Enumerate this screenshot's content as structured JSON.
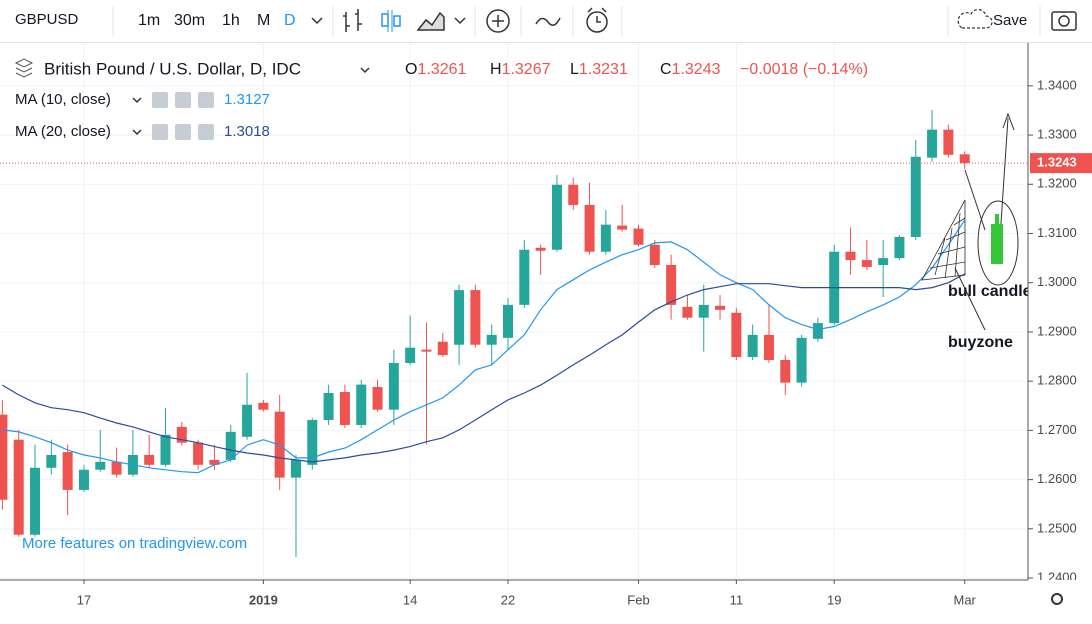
{
  "toolbar": {
    "symbol": "GBPUSD",
    "intervals": [
      "1m",
      "30m",
      "1h",
      "M",
      "D"
    ],
    "save": "Save"
  },
  "chart_data": {
    "type": "candlestick",
    "title": "British Pound / U.S. Dollar, D, IDC",
    "ohlc_labels": [
      "O",
      "H",
      "L",
      "C"
    ],
    "change_text": "−0.0018 (−0.14%)",
    "watermark": "More features on tradingview.com",
    "up_color": "#26a69a",
    "down_color": "#ef5350",
    "categories": [
      null,
      null,
      null,
      null,
      null,
      "17",
      null,
      null,
      null,
      null,
      null,
      null,
      null,
      null,
      null,
      null,
      "2019",
      null,
      null,
      null,
      null,
      null,
      null,
      null,
      null,
      "14",
      null,
      null,
      null,
      null,
      null,
      "22",
      null,
      null,
      null,
      null,
      null,
      null,
      null,
      "Feb",
      null,
      null,
      null,
      null,
      null,
      "11",
      null,
      null,
      null,
      null,
      null,
      "19",
      null,
      null,
      null,
      null,
      null,
      null,
      null,
      "Mar"
    ],
    "open": [
      1.2732,
      1.2681,
      1.2488,
      1.2624,
      1.2656,
      1.2579,
      1.262,
      1.2636,
      1.261,
      1.265,
      1.263,
      1.2707,
      1.2675,
      1.264,
      1.264,
      1.2687,
      1.2756,
      1.2738,
      1.2604,
      1.263,
      1.2721,
      1.2778,
      1.2711,
      1.2788,
      1.2742,
      1.2837,
      1.2864,
      1.288,
      1.2874,
      1.2985,
      1.2874,
      1.2888,
      1.2955,
      1.3071,
      1.3067,
      1.3199,
      1.3158,
      1.3063,
      1.3116,
      1.311,
      1.3077,
      1.3036,
      1.2951,
      1.2929,
      1.2953,
      1.2939,
      1.2849,
      1.2894,
      1.2843,
      1.2797,
      1.2886,
      1.2918,
      1.3063,
      1.3046,
      1.3036,
      1.305,
      1.3093,
      1.3254,
      1.3311,
      1.3261
    ],
    "high": [
      1.2762,
      1.2701,
      1.2671,
      1.2681,
      1.2671,
      1.263,
      1.2701,
      1.2665,
      1.2701,
      1.2691,
      1.2746,
      1.2717,
      1.2681,
      1.2671,
      1.2711,
      1.2817,
      1.2762,
      1.2772,
      1.265,
      1.2725,
      1.2793,
      1.2793,
      1.2803,
      1.2803,
      1.2864,
      1.2933,
      1.2919,
      1.2898,
      1.2996,
      1.2996,
      1.2915,
      1.2969,
      1.3087,
      1.3077,
      1.3219,
      1.3213,
      1.3203,
      1.3148,
      1.3158,
      1.3118,
      1.3087,
      1.3057,
      1.2975,
      1.2996,
      1.2975,
      1.2949,
      1.2915,
      1.2955,
      1.2853,
      1.2894,
      1.2929,
      1.3077,
      1.3112,
      1.3087,
      1.3087,
      1.3097,
      1.329,
      1.3351,
      1.3321,
      1.3267
    ],
    "low": [
      1.2539,
      1.2484,
      1.2484,
      1.261,
      1.2528,
      1.2575,
      1.2616,
      1.2604,
      1.2606,
      1.2624,
      1.2626,
      1.2669,
      1.262,
      1.262,
      1.2636,
      1.2681,
      1.2738,
      1.2579,
      1.2443,
      1.262,
      1.2711,
      1.2705,
      1.2705,
      1.2738,
      1.2711,
      1.2833,
      1.2671,
      1.2849,
      1.2833,
      1.2868,
      1.2833,
      1.2864,
      1.2949,
      1.3016,
      1.3063,
      1.3148,
      1.3057,
      1.3057,
      1.3104,
      1.3073,
      1.303,
      1.2925,
      1.2925,
      1.286,
      1.2925,
      1.2843,
      1.2843,
      1.2837,
      1.2772,
      1.2789,
      1.288,
      1.2914,
      1.3016,
      1.3026,
      1.2971,
      1.3046,
      1.3087,
      1.3246,
      1.3254,
      1.3231
    ],
    "close": [
      1.2559,
      1.2488,
      1.2624,
      1.265,
      1.2579,
      1.262,
      1.2636,
      1.261,
      1.265,
      1.263,
      1.2691,
      1.2675,
      1.263,
      1.263,
      1.2697,
      1.2752,
      1.2742,
      1.2604,
      1.264,
      1.2721,
      1.2776,
      1.2711,
      1.2793,
      1.2742,
      1.2837,
      1.2868,
      1.286,
      1.2853,
      1.2985,
      1.2874,
      1.2894,
      1.2955,
      1.3067,
      1.3065,
      1.3199,
      1.3158,
      1.3063,
      1.3118,
      1.3108,
      1.3077,
      1.3036,
      1.2955,
      1.2929,
      1.2955,
      1.2945,
      1.2849,
      1.2894,
      1.2843,
      1.2797,
      1.2888,
      1.2918,
      1.3063,
      1.3046,
      1.3032,
      1.305,
      1.3093,
      1.3256,
      1.3311,
      1.326,
      1.3243
    ],
    "series": [
      {
        "name": "MA (10, close)",
        "color": "#2196f3",
        "values": [
          1.2701,
          1.2697,
          1.2687,
          1.2675,
          1.266,
          1.265,
          1.2644,
          1.2636,
          1.263,
          1.2624,
          1.262,
          1.2616,
          1.2614,
          1.263,
          1.264,
          1.267,
          1.2681,
          1.267,
          1.2644,
          1.2644,
          1.2656,
          1.2664,
          1.2681,
          1.2701,
          1.2721,
          1.2738,
          1.2752,
          1.2766,
          1.2792,
          1.2823,
          1.2833,
          1.2864,
          1.2894,
          1.2945,
          1.2986,
          1.3006,
          1.3026,
          1.3042,
          1.3057,
          1.3067,
          1.3081,
          1.3083,
          1.3067,
          1.3042,
          1.3016,
          1.3,
          1.2986,
          1.2955,
          1.2929,
          1.2915,
          1.2905,
          1.2911,
          1.2925,
          1.2941,
          1.2955,
          1.2971,
          1.2996,
          1.303,
          1.3077,
          1.3127
        ]
      },
      {
        "name": "MA (20, close)",
        "color": "#2b4c9b",
        "values": [
          1.2792,
          1.2772,
          1.2756,
          1.2746,
          1.2742,
          1.2736,
          1.2725,
          1.2715,
          1.2707,
          1.2697,
          1.2687,
          1.2681,
          1.2675,
          1.2667,
          1.266,
          1.2654,
          1.265,
          1.2644,
          1.264,
          1.2636,
          1.264,
          1.2644,
          1.265,
          1.2654,
          1.266,
          1.2667,
          1.2677,
          1.2685,
          1.2701,
          1.2721,
          1.2742,
          1.2762,
          1.2776,
          1.2792,
          1.2812,
          1.2833,
          1.2853,
          1.2874,
          1.2894,
          1.292,
          1.2945,
          1.2961,
          1.2975,
          1.2986,
          1.2992,
          1.2998,
          1.2998,
          1.2998,
          1.2994,
          1.299,
          1.299,
          1.299,
          1.299,
          1.299,
          1.299,
          1.299,
          1.2986,
          1.299,
          1.3,
          1.3018
        ]
      }
    ],
    "ylim": [
      1.2396,
      1.3483
    ],
    "yticks": [
      {
        "value": 1.24,
        "label": "1.2400"
      },
      {
        "value": 1.25,
        "label": "1.2500"
      },
      {
        "value": 1.26,
        "label": "1.2600"
      },
      {
        "value": 1.27,
        "label": "1.2700"
      },
      {
        "value": 1.28,
        "label": "1.2800"
      },
      {
        "value": 1.29,
        "label": "1.2900"
      },
      {
        "value": 1.3,
        "label": "1.3000"
      },
      {
        "value": 1.31,
        "label": "1.3100"
      },
      {
        "value": 1.32,
        "label": "1.3200"
      },
      {
        "value": 1.33,
        "label": "1.3300"
      },
      {
        "value": 1.34,
        "label": "1.3400"
      }
    ],
    "grid": true,
    "annotations": [
      "bull candle",
      "buyzone"
    ]
  }
}
